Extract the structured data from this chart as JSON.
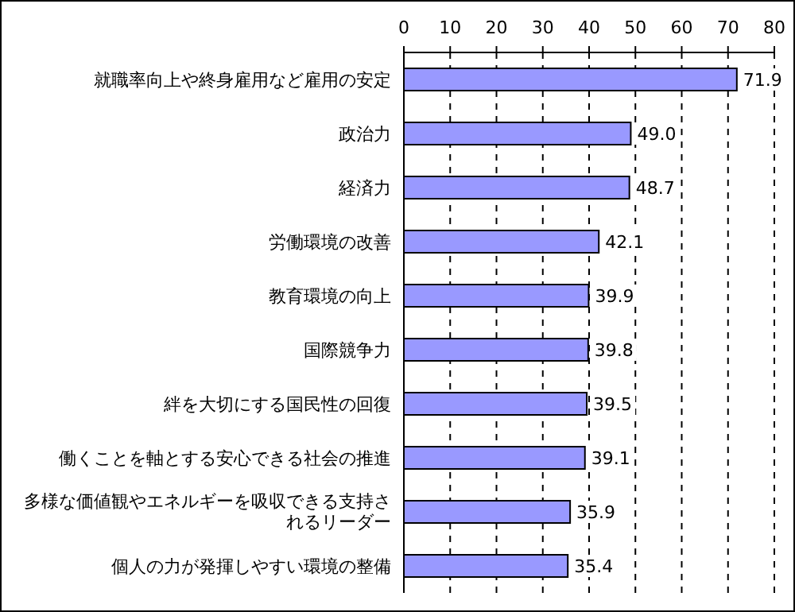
{
  "chart_data": {
    "type": "bar",
    "orientation": "horizontal",
    "categories": [
      "就職率向上や終身雇用など雇用の安定",
      "政治力",
      "経済力",
      "労働環境の改善",
      "教育環境の向上",
      "国際競争力",
      "絆を大切にする国民性の回復",
      "働くことを軸とする安心できる社会の推進",
      "多様な価値観やエネルギーを吸収できる支持されるリーダー",
      "個人の力が発揮しやすい環境の整備"
    ],
    "values": [
      71.9,
      49.0,
      48.7,
      42.1,
      39.9,
      39.8,
      39.5,
      39.1,
      35.9,
      35.4
    ],
    "color": "#9999ff",
    "xlim": [
      0,
      80
    ],
    "xticks": [
      0,
      10,
      20,
      30,
      40,
      50,
      60,
      70,
      80
    ],
    "value_labels": [
      "71.9",
      "49.0",
      "48.7",
      "42.1",
      "39.9",
      "39.8",
      "39.5",
      "39.1",
      "35.9",
      "35.4"
    ],
    "grid": "x"
  }
}
